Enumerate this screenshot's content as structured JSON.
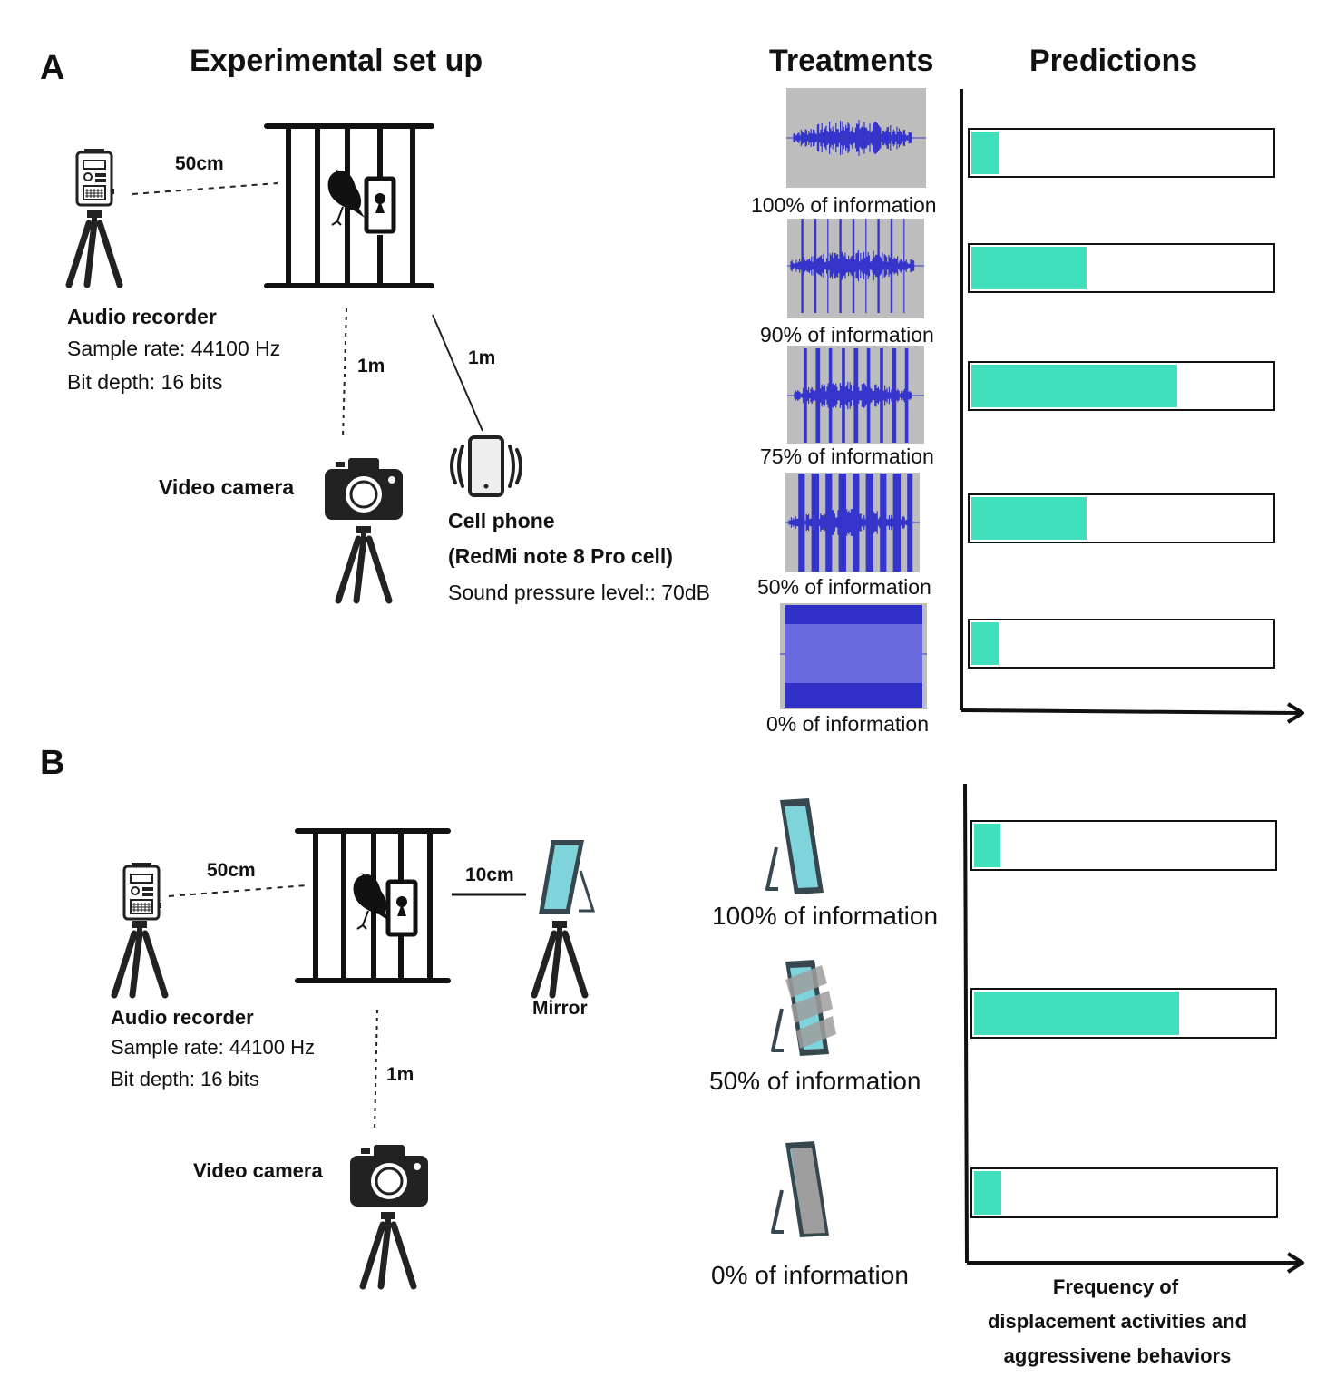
{
  "panel_a": {
    "letter": "A",
    "title_setup": "Experimental set up",
    "title_treatments": "Treatments",
    "title_predictions": "Predictions",
    "audio_title": "Audio recorder",
    "audio_rate": "Sample rate: 44100 Hz",
    "audio_depth": "Bit depth: 16 bits",
    "dist_audio": "50cm",
    "dist_camera": "1m",
    "dist_phone": "1m",
    "camera_label": "Video camera",
    "phone_title": "Cell phone",
    "phone_model": "(RedMi note 8 Pro cell)",
    "phone_spl": "Sound pressure level:: 70dB",
    "treatments": [
      {
        "label": "100% of information",
        "prediction": 0.1
      },
      {
        "label": "90% of information",
        "prediction": 0.39
      },
      {
        "label": "75% of information",
        "prediction": 0.69
      },
      {
        "label": "50% of information",
        "prediction": 0.39
      },
      {
        "label": "0% of information",
        "prediction": 0.1
      }
    ]
  },
  "panel_b": {
    "letter": "B",
    "audio_title": "Audio recorder",
    "audio_rate": "Sample rate: 44100 Hz",
    "audio_depth": "Bit depth: 16 bits",
    "dist_audio": "50cm",
    "dist_mirror": "10cm",
    "dist_camera": "1m",
    "mirror_label": "Mirror",
    "camera_label": "Video camera",
    "treatments": [
      {
        "label": "100% of information",
        "prediction": 0.1
      },
      {
        "label": "50% of information",
        "prediction": 0.69
      },
      {
        "label": "0% of information",
        "prediction": 0.1
      }
    ],
    "axis_label_1": "Frequency of",
    "axis_label_2": "displacement activities and",
    "axis_label_3": "aggressivene behaviors"
  },
  "colors": {
    "bar_fill": "#40e0bd",
    "waveform": "#3535cc",
    "wave_bg": "#bdbdbd",
    "mirror_glass": "#7fd3db",
    "mirror_frame": "#37474f",
    "camera": "#222222"
  }
}
